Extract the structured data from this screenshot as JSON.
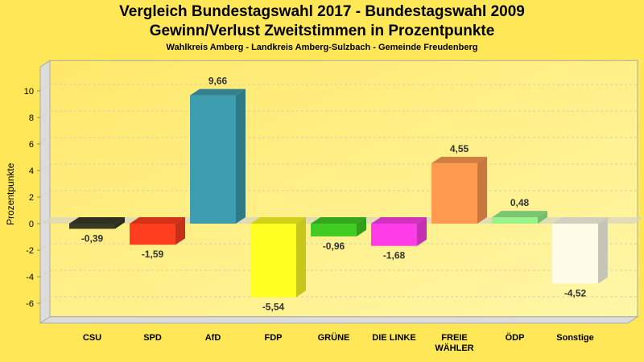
{
  "chart_data": {
    "type": "bar",
    "title": "Vergleich Bundestagswahl 2017 - Bundestagswahl 2009",
    "subtitle": "Gewinn/Verlust Zweitstimmen in Prozentpunkte",
    "caption": "Wahlkreis Amberg - Landkreis Amberg-Sulzbach - Gemeinde Freudenberg",
    "xlabel": "",
    "ylabel": "Prozentpunkte",
    "ylim": [
      -7.5,
      11.8
    ],
    "yticks": [
      -6,
      -4,
      -2,
      0,
      2,
      4,
      6,
      8,
      10
    ],
    "grid": true,
    "categories": [
      "CSU",
      "SPD",
      "AfD",
      "FDP",
      "GRÜNE",
      "DIE LINKE",
      "FREIE WÄHLER",
      "ÖDP",
      "Sonstige"
    ],
    "category_lines": [
      [
        "CSU"
      ],
      [
        "SPD"
      ],
      [
        "AfD"
      ],
      [
        "FDP"
      ],
      [
        "GRÜNE"
      ],
      [
        "DIE LINKE"
      ],
      [
        "FREIE",
        "WÄHLER"
      ],
      [
        "ÖDP"
      ],
      [
        "Sonstige"
      ]
    ],
    "values": [
      -0.39,
      -1.59,
      9.66,
      -5.54,
      -0.96,
      -1.68,
      4.55,
      0.48,
      -4.52
    ],
    "labels": [
      "-0,39",
      "-1,59",
      "9,66",
      "-5,54",
      "-0,96",
      "-1,68",
      "4,55",
      "0,48",
      "-4,52"
    ],
    "colors": [
      "#3A3A24",
      "#FF3D1F",
      "#3E9DAE",
      "#FFFF22",
      "#40CC22",
      "#FF3DE8",
      "#FF9A50",
      "#99F28A",
      "#FFFDE8"
    ]
  }
}
